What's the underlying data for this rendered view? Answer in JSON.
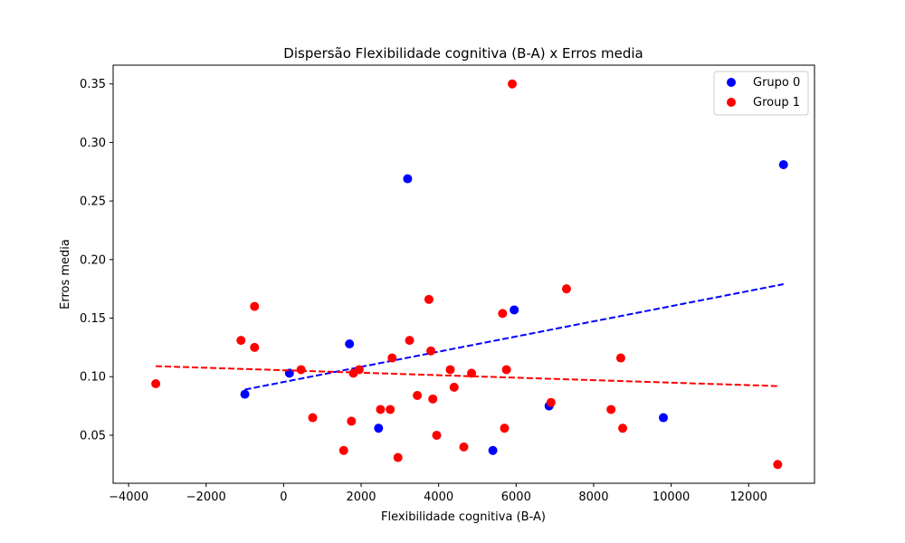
{
  "chart_data": {
    "type": "scatter",
    "title": "Dispersão Flexibilidade cognitiva (B-A) x Erros media",
    "xlabel": "Flexibilidade cognitiva (B-A)",
    "ylabel": "Erros media",
    "xlim": [
      -4400,
      13700
    ],
    "ylim": [
      0.009,
      0.366
    ],
    "xticks": [
      -4000,
      -2000,
      0,
      2000,
      4000,
      6000,
      8000,
      10000,
      12000
    ],
    "xtick_labels": [
      "−4000",
      "−2000",
      "0",
      "2000",
      "4000",
      "6000",
      "8000",
      "10000",
      "12000"
    ],
    "yticks": [
      0.05,
      0.1,
      0.15,
      0.2,
      0.25,
      0.3,
      0.35
    ],
    "ytick_labels": [
      "0.05",
      "0.10",
      "0.15",
      "0.20",
      "0.25",
      "0.30",
      "0.35"
    ],
    "grid": false,
    "legend_position": "top-right",
    "series": [
      {
        "name": "Grupo 0",
        "color": "#0000ff",
        "points": [
          [
            -1000,
            0.085
          ],
          [
            150,
            0.103
          ],
          [
            1700,
            0.128
          ],
          [
            2450,
            0.056
          ],
          [
            3200,
            0.269
          ],
          [
            5400,
            0.037
          ],
          [
            5950,
            0.157
          ],
          [
            6850,
            0.075
          ],
          [
            9800,
            0.065
          ],
          [
            12900,
            0.281
          ]
        ],
        "trend": {
          "x1": -1000,
          "y1": 0.089,
          "x2": 12900,
          "y2": 0.179
        }
      },
      {
        "name": "Group 1",
        "color": "#ff0000",
        "points": [
          [
            -3300,
            0.094
          ],
          [
            -1100,
            0.131
          ],
          [
            -750,
            0.16
          ],
          [
            -750,
            0.125
          ],
          [
            450,
            0.106
          ],
          [
            750,
            0.065
          ],
          [
            1550,
            0.037
          ],
          [
            1750,
            0.062
          ],
          [
            1800,
            0.103
          ],
          [
            1950,
            0.106
          ],
          [
            2500,
            0.072
          ],
          [
            2750,
            0.072
          ],
          [
            2800,
            0.116
          ],
          [
            2950,
            0.031
          ],
          [
            3250,
            0.131
          ],
          [
            3450,
            0.084
          ],
          [
            3750,
            0.166
          ],
          [
            3800,
            0.122
          ],
          [
            3850,
            0.081
          ],
          [
            3950,
            0.05
          ],
          [
            4300,
            0.106
          ],
          [
            4400,
            0.091
          ],
          [
            4650,
            0.04
          ],
          [
            4850,
            0.103
          ],
          [
            5650,
            0.154
          ],
          [
            5700,
            0.056
          ],
          [
            5750,
            0.106
          ],
          [
            5900,
            0.35
          ],
          [
            6900,
            0.078
          ],
          [
            7300,
            0.175
          ],
          [
            8450,
            0.072
          ],
          [
            8700,
            0.116
          ],
          [
            8750,
            0.056
          ],
          [
            12750,
            0.025
          ]
        ],
        "trend": {
          "x1": -3300,
          "y1": 0.109,
          "x2": 12750,
          "y2": 0.092
        }
      }
    ]
  }
}
